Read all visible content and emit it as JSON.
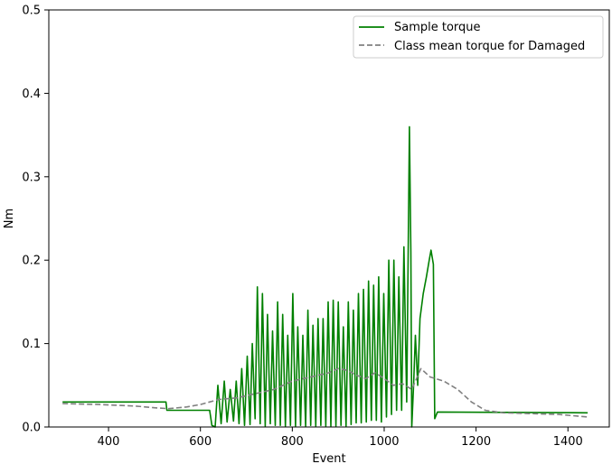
{
  "chart_data": {
    "type": "line",
    "xlabel": "Event",
    "ylabel": "Nm",
    "xlim": [
      270,
      1490
    ],
    "ylim": [
      0,
      0.5
    ],
    "xticks": [
      "400",
      "600",
      "800",
      "1000",
      "1200",
      "1400"
    ],
    "yticks": [
      "0.0",
      "0.1",
      "0.2",
      "0.3",
      "0.4",
      "0.5"
    ],
    "grid": false,
    "legend_position": "top-right",
    "series": [
      {
        "name": "Sample torque",
        "color": "#008000",
        "style": "solid",
        "points": [
          [
            300,
            0.03
          ],
          [
            525,
            0.03
          ],
          [
            527,
            0.02
          ],
          [
            620,
            0.02
          ],
          [
            625,
            0.002
          ],
          [
            632,
            0.0
          ],
          [
            638,
            0.05
          ],
          [
            645,
            0.004
          ],
          [
            652,
            0.055
          ],
          [
            658,
            0.006
          ],
          [
            665,
            0.045
          ],
          [
            672,
            0.007
          ],
          [
            678,
            0.055
          ],
          [
            684,
            0.004
          ],
          [
            690,
            0.07
          ],
          [
            696,
            0.002
          ],
          [
            702,
            0.085
          ],
          [
            708,
            0.003
          ],
          [
            713,
            0.1
          ],
          [
            719,
            0.01
          ],
          [
            724,
            0.168
          ],
          [
            730,
            0.004
          ],
          [
            735,
            0.16
          ],
          [
            741,
            0.001
          ],
          [
            746,
            0.135
          ],
          [
            752,
            0.004
          ],
          [
            757,
            0.115
          ],
          [
            763,
            0.002
          ],
          [
            768,
            0.15
          ],
          [
            774,
            0.002
          ],
          [
            779,
            0.135
          ],
          [
            785,
            0.001
          ],
          [
            790,
            0.11
          ],
          [
            796,
            0.002
          ],
          [
            801,
            0.16
          ],
          [
            807,
            0.001
          ],
          [
            812,
            0.12
          ],
          [
            818,
            0.002
          ],
          [
            823,
            0.11
          ],
          [
            829,
            0.001
          ],
          [
            834,
            0.14
          ],
          [
            840,
            0.002
          ],
          [
            845,
            0.122
          ],
          [
            851,
            0.001
          ],
          [
            856,
            0.13
          ],
          [
            862,
            0.002
          ],
          [
            867,
            0.13
          ],
          [
            873,
            0.001
          ],
          [
            878,
            0.15
          ],
          [
            884,
            0.001
          ],
          [
            889,
            0.152
          ],
          [
            895,
            0.001
          ],
          [
            900,
            0.15
          ],
          [
            906,
            0.002
          ],
          [
            911,
            0.12
          ],
          [
            917,
            0.001
          ],
          [
            922,
            0.15
          ],
          [
            928,
            0.003
          ],
          [
            933,
            0.14
          ],
          [
            939,
            0.005
          ],
          [
            944,
            0.16
          ],
          [
            950,
            0.005
          ],
          [
            955,
            0.165
          ],
          [
            961,
            0.006
          ],
          [
            966,
            0.175
          ],
          [
            972,
            0.008
          ],
          [
            977,
            0.17
          ],
          [
            983,
            0.008
          ],
          [
            988,
            0.18
          ],
          [
            994,
            0.006
          ],
          [
            999,
            0.16
          ],
          [
            1005,
            0.012
          ],
          [
            1010,
            0.2
          ],
          [
            1016,
            0.015
          ],
          [
            1021,
            0.2
          ],
          [
            1027,
            0.02
          ],
          [
            1032,
            0.18
          ],
          [
            1038,
            0.02
          ],
          [
            1043,
            0.216
          ],
          [
            1049,
            0.03
          ],
          [
            1055,
            0.36
          ],
          [
            1058,
            0.21
          ],
          [
            1060,
            0.0
          ],
          [
            1064,
            0.05
          ],
          [
            1068,
            0.11
          ],
          [
            1073,
            0.05
          ],
          [
            1078,
            0.13
          ],
          [
            1085,
            0.16
          ],
          [
            1092,
            0.18
          ],
          [
            1098,
            0.2
          ],
          [
            1102,
            0.212
          ],
          [
            1107,
            0.195
          ],
          [
            1110,
            0.01
          ],
          [
            1116,
            0.018
          ],
          [
            1443,
            0.017
          ]
        ]
      },
      {
        "name": "Class mean torque for Damaged",
        "color": "#808080",
        "style": "dashed",
        "points": [
          [
            300,
            0.028
          ],
          [
            380,
            0.027
          ],
          [
            460,
            0.025
          ],
          [
            500,
            0.023
          ],
          [
            530,
            0.022
          ],
          [
            570,
            0.024
          ],
          [
            600,
            0.027
          ],
          [
            640,
            0.033
          ],
          [
            680,
            0.035
          ],
          [
            720,
            0.04
          ],
          [
            760,
            0.045
          ],
          [
            800,
            0.055
          ],
          [
            840,
            0.06
          ],
          [
            880,
            0.065
          ],
          [
            900,
            0.07
          ],
          [
            920,
            0.068
          ],
          [
            940,
            0.062
          ],
          [
            960,
            0.058
          ],
          [
            980,
            0.065
          ],
          [
            1000,
            0.058
          ],
          [
            1020,
            0.05
          ],
          [
            1040,
            0.052
          ],
          [
            1060,
            0.045
          ],
          [
            1080,
            0.07
          ],
          [
            1100,
            0.06
          ],
          [
            1130,
            0.055
          ],
          [
            1160,
            0.045
          ],
          [
            1190,
            0.03
          ],
          [
            1220,
            0.02
          ],
          [
            1260,
            0.017
          ],
          [
            1320,
            0.016
          ],
          [
            1380,
            0.015
          ],
          [
            1443,
            0.012
          ]
        ]
      }
    ]
  }
}
